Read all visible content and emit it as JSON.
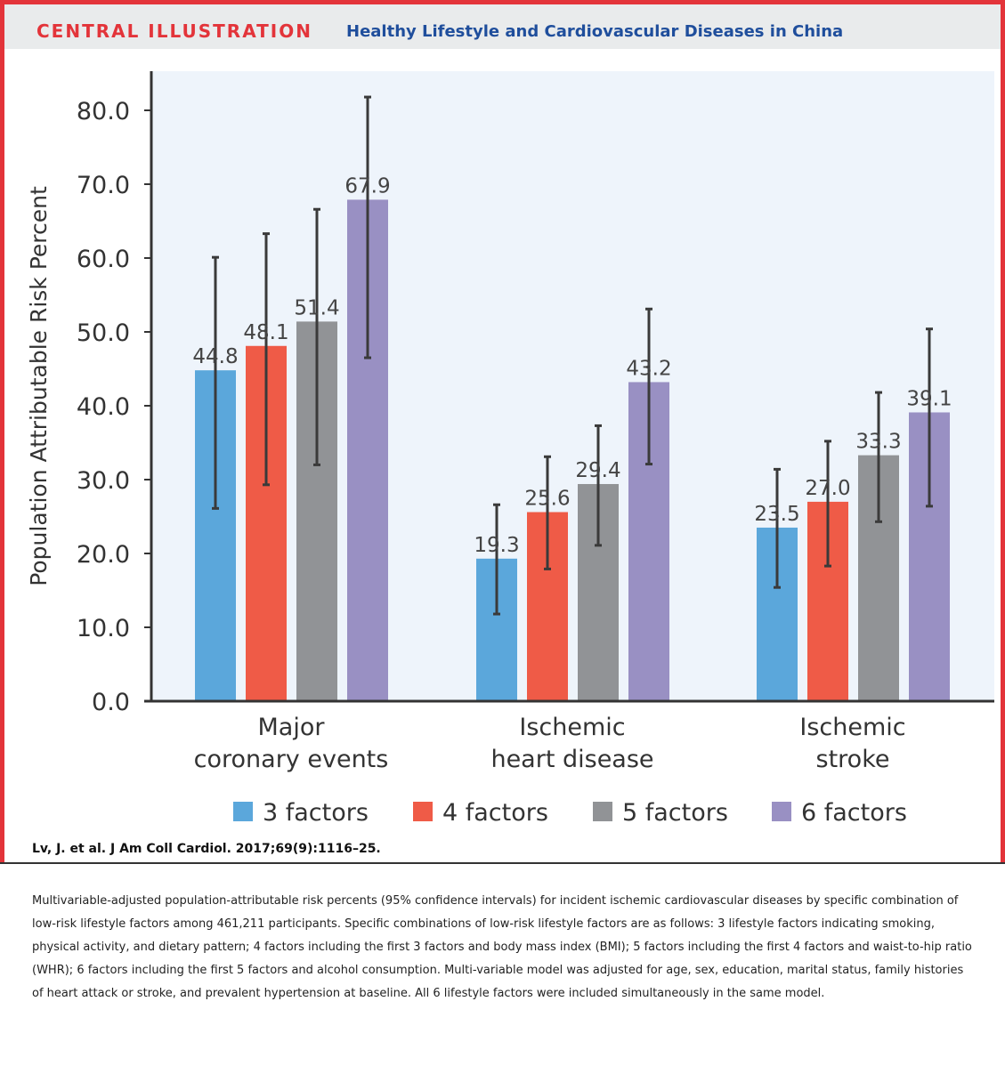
{
  "header": {
    "label": "CENTRAL ILLUSTRATION",
    "title": "Healthy Lifestyle and Cardiovascular Diseases in China"
  },
  "citation": "Lv, J. et al. J Am Coll Cardiol. 2017;69(9):1116–25.",
  "caption": "Multivariable-adjusted population-attributable risk percents (95% confidence intervals) for incident ischemic cardiovascular diseases by specific combination of low-risk lifestyle factors among 461,211 participants. Specific combinations of low-risk lifestyle factors are as follows: 3 lifestyle factors indicating smoking, physical activity, and dietary pattern; 4 factors including the first 3 factors and body mass index (BMI); 5 factors including the first 4 factors and waist-to-hip ratio (WHR); 6 factors including the first 5 factors and alcohol consumption. Multi-variable model was adjusted for age, sex, education, marital status, family histories of heart attack or stroke, and prevalent hypertension at baseline. All 6 lifestyle factors were included simultaneously in the same model.",
  "chart_data": {
    "type": "bar",
    "ylabel": "Population Attributable Risk Percent",
    "xlabel": "",
    "ylim": [
      0,
      80
    ],
    "yticks": [
      "0.0",
      "10.0",
      "20.0",
      "30.0",
      "40.0",
      "50.0",
      "60.0",
      "70.0",
      "80.0"
    ],
    "grid": false,
    "legend_position": "bottom",
    "categories": [
      [
        "Major",
        "coronary events"
      ],
      [
        "Ischemic",
        "heart disease"
      ],
      [
        "Ischemic",
        "stroke"
      ]
    ],
    "series": [
      {
        "name": "3 factors",
        "color": "#5ba7db",
        "values": [
          44.8,
          19.3,
          23.5
        ],
        "ci_low": [
          26.1,
          11.8,
          15.4
        ],
        "ci_high": [
          60.1,
          26.6,
          31.4
        ],
        "labels": [
          "44.8",
          "19.3",
          "23.5"
        ]
      },
      {
        "name": "4 factors",
        "color": "#ef5b47",
        "values": [
          48.1,
          25.6,
          27.0
        ],
        "ci_low": [
          29.3,
          17.9,
          18.3
        ],
        "ci_high": [
          63.3,
          33.1,
          35.2
        ],
        "labels": [
          "48.1",
          "25.6",
          "27.0"
        ]
      },
      {
        "name": "5 factors",
        "color": "#919396",
        "values": [
          51.4,
          29.4,
          33.3
        ],
        "ci_low": [
          32.0,
          21.1,
          24.3
        ],
        "ci_high": [
          66.6,
          37.3,
          41.8
        ],
        "labels": [
          "51.4",
          "29.4",
          "33.3"
        ]
      },
      {
        "name": "6 factors",
        "color": "#9990c3",
        "values": [
          67.9,
          43.2,
          39.1
        ],
        "ci_low": [
          46.5,
          32.1,
          26.4
        ],
        "ci_high": [
          81.8,
          53.1,
          50.4
        ],
        "labels": [
          "67.9",
          "43.2",
          "39.1"
        ]
      }
    ],
    "colors": {
      "plot_background": "#eef4fb",
      "axis": "#333333",
      "error_bar": "#3a3a3a"
    }
  }
}
